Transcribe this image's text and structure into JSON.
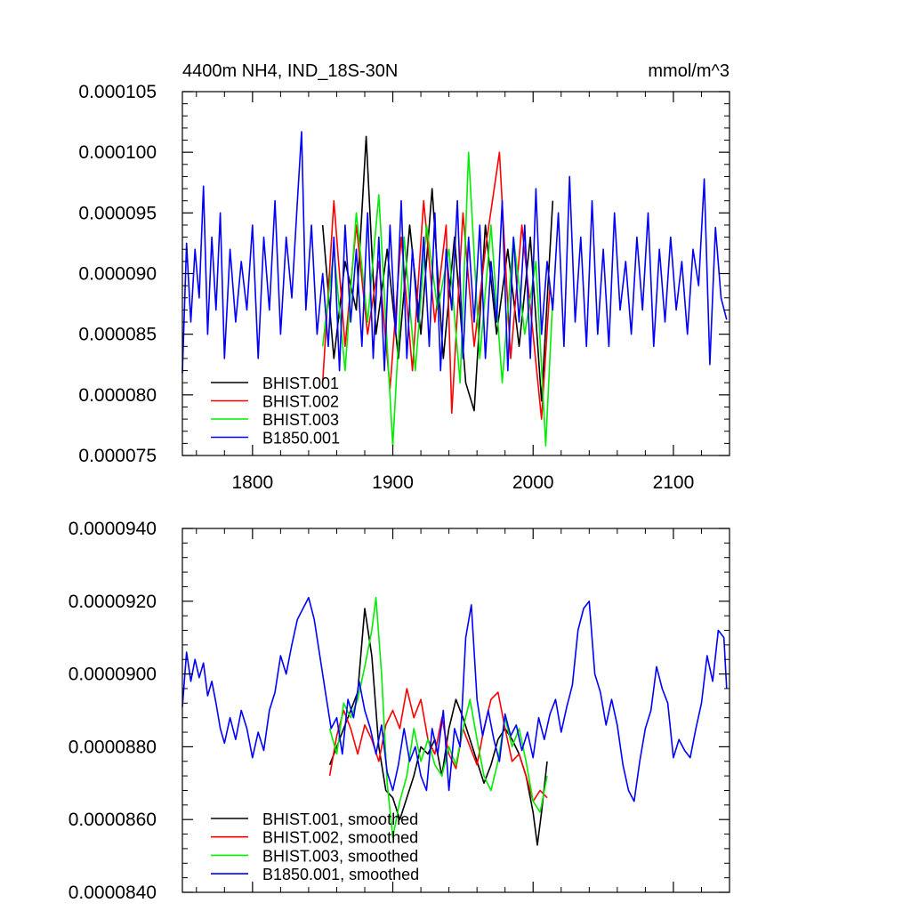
{
  "chart_data": [
    {
      "type": "line",
      "title": "4400m NH4, IND_18S-30N",
      "units": "mmol/m^3",
      "xlim": [
        1750,
        2140
      ],
      "ylim": [
        7.5e-05,
        0.000105
      ],
      "x_ticks": [
        1800,
        1900,
        2000,
        2100
      ],
      "x_tick_labels": [
        "1800",
        "1900",
        "2000",
        "2100"
      ],
      "y_ticks": [
        7.5e-05,
        8e-05,
        8.5e-05,
        9e-05,
        9.5e-05,
        0.0001,
        0.000105
      ],
      "y_tick_labels": [
        "0.000075",
        "0.000080",
        "0.000085",
        "0.000090",
        "0.000095",
        "0.000100",
        "0.000105"
      ],
      "grid": false,
      "legend_position": "bottom-left",
      "series": [
        {
          "name": "BHIST.001",
          "color": "#000000",
          "x": [
            1850,
            1858,
            1866,
            1874,
            1881,
            1888,
            1896,
            1904,
            1912,
            1920,
            1928,
            1936,
            1944,
            1952,
            1958,
            1966,
            1974,
            1982,
            1990,
            1998,
            2006,
            2014
          ],
          "y": [
            9.4e-05,
            8.3e-05,
            9.1e-05,
            8.7e-05,
            0.0001013,
            8.5e-05,
            9.2e-05,
            8.3e-05,
            9.4e-05,
            8.5e-05,
            9.7e-05,
            8.3e-05,
            9.3e-05,
            8.1e-05,
            7.87e-05,
            9.4e-05,
            8.5e-05,
            9.2e-05,
            8.4e-05,
            9.3e-05,
            7.95e-05,
            9.6e-05
          ]
        },
        {
          "name": "BHIST.002",
          "color": "#ff0000",
          "x": [
            1850,
            1858,
            1866,
            1874,
            1882,
            1890,
            1898,
            1906,
            1914,
            1922,
            1930,
            1938,
            1942,
            1950,
            1958,
            1966,
            1976,
            1984,
            1992,
            2000,
            2006,
            2012
          ],
          "y": [
            8.1e-05,
            9.6e-05,
            8.4e-05,
            9.4e-05,
            8.5e-05,
            9.1e-05,
            8.05e-05,
            9.3e-05,
            8.2e-05,
            9.6e-05,
            8.6e-05,
            9.4e-05,
            7.85e-05,
            9.5e-05,
            8.4e-05,
            9.2e-05,
            0.0001,
            8.3e-05,
            9.4e-05,
            8.5e-05,
            7.8e-05,
            8.9e-05
          ]
        },
        {
          "name": "BHIST.003",
          "color": "#00ee00",
          "x": [
            1850,
            1858,
            1866,
            1874,
            1882,
            1890,
            1900,
            1908,
            1916,
            1924,
            1932,
            1940,
            1948,
            1954,
            1962,
            1970,
            1978,
            1986,
            1994,
            2002,
            2009,
            2014
          ],
          "y": [
            8.4e-05,
            9.2e-05,
            8.2e-05,
            9.5e-05,
            8.6e-05,
            9.65e-05,
            7.58e-05,
            9.3e-05,
            8.2e-05,
            9.4e-05,
            8.7e-05,
            9.2e-05,
            8.1e-05,
            0.0001,
            8.3e-05,
            9.4e-05,
            8.1e-05,
            9.3e-05,
            8.5e-05,
            9.1e-05,
            7.58e-05,
            8.8e-05
          ]
        },
        {
          "name": "B1850.001",
          "color": "#0000ff",
          "x": [
            1750,
            1753,
            1756,
            1759,
            1762,
            1765,
            1768,
            1771,
            1774,
            1777,
            1780,
            1784,
            1788,
            1792,
            1796,
            1800,
            1804,
            1808,
            1812,
            1816,
            1820,
            1824,
            1828,
            1832,
            1835,
            1838,
            1842,
            1846,
            1850,
            1854,
            1858,
            1862,
            1866,
            1870,
            1874,
            1878,
            1882,
            1886,
            1890,
            1894,
            1898,
            1902,
            1906,
            1910,
            1914,
            1918,
            1922,
            1926,
            1930,
            1934,
            1938,
            1942,
            1946,
            1950,
            1954,
            1958,
            1962,
            1966,
            1970,
            1974,
            1978,
            1982,
            1986,
            1990,
            1994,
            1998,
            2002,
            2006,
            2010,
            2014,
            2018,
            2022,
            2026,
            2030,
            2034,
            2038,
            2042,
            2046,
            2050,
            2054,
            2058,
            2062,
            2066,
            2070,
            2074,
            2078,
            2082,
            2086,
            2090,
            2094,
            2098,
            2102,
            2106,
            2110,
            2114,
            2118,
            2122,
            2126,
            2130,
            2134,
            2138
          ],
          "y": [
            8.18e-05,
            9.25e-05,
            8.6e-05,
            9.2e-05,
            8.8e-05,
            9.72e-05,
            8.5e-05,
            9.3e-05,
            8.7e-05,
            9.5e-05,
            8.3e-05,
            9.2e-05,
            8.6e-05,
            9.1e-05,
            8.7e-05,
            9.4e-05,
            8.3e-05,
            9.3e-05,
            8.7e-05,
            9.6e-05,
            8.5e-05,
            9.3e-05,
            8.8e-05,
            9.6e-05,
            0.0001017,
            8.7e-05,
            9.4e-05,
            8.5e-05,
            9e-05,
            8.4e-05,
            9.3e-05,
            8.2e-05,
            9.4e-05,
            8.6e-05,
            9.2e-05,
            8.4e-05,
            9.5e-05,
            8.3e-05,
            9.3e-05,
            8.2e-05,
            9.4e-05,
            8.5e-05,
            9.6e-05,
            8.3e-05,
            9.2e-05,
            8.6e-05,
            9.3e-05,
            8.4e-05,
            9.5e-05,
            8.2e-05,
            9.2e-05,
            8.7e-05,
            9.6e-05,
            8.3e-05,
            9.3e-05,
            8.6e-05,
            9.4e-05,
            8.3e-05,
            9.1e-05,
            8.6e-05,
            9.6e-05,
            8.2e-05,
            9.3e-05,
            8.6e-05,
            9.4e-05,
            8.3e-05,
            9.7e-05,
            8.5e-05,
            9.1e-05,
            8.7e-05,
            9.5e-05,
            8.4e-05,
            9.8e-05,
            8.6e-05,
            9.3e-05,
            8.4e-05,
            9.6e-05,
            8.5e-05,
            9.2e-05,
            8.4e-05,
            9.5e-05,
            8.7e-05,
            9.1e-05,
            8.5e-05,
            9.3e-05,
            8.7e-05,
            9.5e-05,
            8.4e-05,
            9.2e-05,
            8.6e-05,
            9.3e-05,
            8.7e-05,
            9.1e-05,
            8.5e-05,
            9.2e-05,
            8.9e-05,
            9.78e-05,
            8.25e-05,
            9.38e-05,
            8.8e-05,
            8.62e-05
          ]
        }
      ]
    },
    {
      "type": "line",
      "xlim": [
        1750,
        2140
      ],
      "ylim": [
        8.4e-05,
        9.4e-05
      ],
      "x_ticks": [
        1800,
        1900,
        2000,
        2100
      ],
      "y_ticks": [
        8.4e-05,
        8.6e-05,
        8.8e-05,
        9e-05,
        9.2e-05,
        9.4e-05
      ],
      "y_tick_labels": [
        "0.0000840",
        "0.0000860",
        "0.0000880",
        "0.0000900",
        "0.0000920",
        "0.0000940"
      ],
      "grid": false,
      "legend_position": "bottom-left",
      "series": [
        {
          "name": "BHIST.001, smoothed",
          "color": "#000000",
          "x": [
            1855,
            1860,
            1865,
            1870,
            1875,
            1880,
            1885,
            1890,
            1895,
            1900,
            1905,
            1910,
            1915,
            1920,
            1925,
            1930,
            1935,
            1940,
            1945,
            1950,
            1955,
            1960,
            1965,
            1970,
            1975,
            1980,
            1985,
            1990,
            1995,
            2000,
            2003,
            2006,
            2010
          ],
          "y": [
            8.75e-05,
            8.8e-05,
            8.85e-05,
            8.9e-05,
            8.95e-05,
            9.18e-05,
            9.05e-05,
            8.8e-05,
            8.68e-05,
            8.66e-05,
            8.6e-05,
            8.66e-05,
            8.72e-05,
            8.8e-05,
            8.78e-05,
            8.82e-05,
            8.72e-05,
            8.85e-05,
            8.93e-05,
            8.88e-05,
            8.82e-05,
            8.76e-05,
            8.7e-05,
            8.75e-05,
            8.82e-05,
            8.85e-05,
            8.82e-05,
            8.78e-05,
            8.72e-05,
            8.62e-05,
            8.53e-05,
            8.62e-05,
            8.76e-05
          ]
        },
        {
          "name": "BHIST.002, smoothed",
          "color": "#ff0000",
          "x": [
            1855,
            1860,
            1865,
            1870,
            1875,
            1880,
            1885,
            1890,
            1895,
            1900,
            1905,
            1910,
            1915,
            1920,
            1925,
            1930,
            1935,
            1940,
            1945,
            1950,
            1955,
            1960,
            1965,
            1970,
            1975,
            1980,
            1985,
            1990,
            1995,
            2000,
            2005,
            2010
          ],
          "y": [
            8.72e-05,
            8.83e-05,
            8.9e-05,
            8.85e-05,
            8.78e-05,
            8.86e-05,
            8.82e-05,
            8.76e-05,
            8.86e-05,
            8.9e-05,
            8.85e-05,
            8.96e-05,
            8.88e-05,
            8.93e-05,
            8.82e-05,
            8.78e-05,
            8.88e-05,
            8.78e-05,
            8.74e-05,
            8.85e-05,
            8.8e-05,
            8.75e-05,
            8.85e-05,
            8.93e-05,
            8.95e-05,
            8.85e-05,
            8.76e-05,
            8.78e-05,
            8.72e-05,
            8.65e-05,
            8.68e-05,
            8.66e-05
          ]
        },
        {
          "name": "BHIST.003, smoothed",
          "color": "#00ee00",
          "x": [
            1855,
            1860,
            1865,
            1870,
            1875,
            1880,
            1885,
            1888,
            1892,
            1896,
            1900,
            1905,
            1910,
            1915,
            1920,
            1925,
            1930,
            1935,
            1940,
            1945,
            1950,
            1955,
            1960,
            1965,
            1970,
            1975,
            1980,
            1985,
            1990,
            1995,
            2000,
            2005,
            2010
          ],
          "y": [
            8.85e-05,
            8.78e-05,
            8.92e-05,
            8.88e-05,
            8.93e-05,
            9.02e-05,
            9.12e-05,
            9.21e-05,
            9e-05,
            8.7e-05,
            8.55e-05,
            8.65e-05,
            8.72e-05,
            8.85e-05,
            8.76e-05,
            8.82e-05,
            8.75e-05,
            8.72e-05,
            8.8e-05,
            8.75e-05,
            8.85e-05,
            8.93e-05,
            8.82e-05,
            8.72e-05,
            8.68e-05,
            8.76e-05,
            8.88e-05,
            8.8e-05,
            8.85e-05,
            8.76e-05,
            8.65e-05,
            8.62e-05,
            8.72e-05
          ]
        },
        {
          "name": "B1850.001, smoothed",
          "color": "#0000ff",
          "x": [
            1750,
            1753,
            1756,
            1759,
            1762,
            1765,
            1768,
            1771,
            1774,
            1777,
            1780,
            1784,
            1788,
            1792,
            1796,
            1800,
            1804,
            1808,
            1812,
            1816,
            1820,
            1824,
            1828,
            1832,
            1836,
            1840,
            1844,
            1848,
            1852,
            1856,
            1860,
            1864,
            1868,
            1872,
            1876,
            1880,
            1884,
            1888,
            1892,
            1896,
            1900,
            1904,
            1908,
            1912,
            1916,
            1920,
            1924,
            1928,
            1932,
            1936,
            1940,
            1944,
            1948,
            1952,
            1956,
            1960,
            1964,
            1968,
            1972,
            1976,
            1980,
            1984,
            1988,
            1992,
            1996,
            2000,
            2004,
            2008,
            2012,
            2016,
            2020,
            2024,
            2028,
            2032,
            2036,
            2040,
            2044,
            2048,
            2052,
            2056,
            2060,
            2064,
            2068,
            2072,
            2076,
            2080,
            2084,
            2088,
            2092,
            2096,
            2100,
            2104,
            2108,
            2112,
            2116,
            2120,
            2124,
            2128,
            2132,
            2136,
            2138
          ],
          "y": [
            8.91e-05,
            9.06e-05,
            8.98e-05,
            9.04e-05,
            8.99e-05,
            9.03e-05,
            8.94e-05,
            8.98e-05,
            8.92e-05,
            8.85e-05,
            8.81e-05,
            8.88e-05,
            8.82e-05,
            8.9e-05,
            8.85e-05,
            8.77e-05,
            8.84e-05,
            8.79e-05,
            8.9e-05,
            8.95e-05,
            9.05e-05,
            9e-05,
            9.08e-05,
            9.15e-05,
            9.18e-05,
            9.21e-05,
            9.15e-05,
            9.05e-05,
            8.95e-05,
            8.85e-05,
            8.88e-05,
            8.78e-05,
            8.93e-05,
            8.88e-05,
            8.98e-05,
            8.9e-05,
            8.85e-05,
            8.78e-05,
            8.86e-05,
            8.73e-05,
            8.68e-05,
            8.75e-05,
            8.85e-05,
            8.76e-05,
            8.8e-05,
            8.72e-05,
            8.68e-05,
            8.85e-05,
            8.78e-05,
            8.9e-05,
            8.68e-05,
            8.85e-05,
            8.8e-05,
            9.1e-05,
            9.19e-05,
            8.93e-05,
            8.83e-05,
            8.9e-05,
            8.82e-05,
            8.76e-05,
            8.89e-05,
            8.83e-05,
            8.86e-05,
            8.79e-05,
            8.84e-05,
            8.77e-05,
            8.88e-05,
            8.82e-05,
            8.89e-05,
            8.93e-05,
            8.84e-05,
            8.91e-05,
            8.97e-05,
            9.12e-05,
            9.18e-05,
            9.2e-05,
            9e-05,
            8.95e-05,
            8.86e-05,
            8.93e-05,
            8.86e-05,
            8.75e-05,
            8.68e-05,
            8.65e-05,
            8.76e-05,
            8.85e-05,
            8.9e-05,
            9.02e-05,
            8.96e-05,
            8.92e-05,
            8.77e-05,
            8.82e-05,
            8.79e-05,
            8.77e-05,
            8.85e-05,
            8.92e-05,
            9.05e-05,
            8.98e-05,
            9.12e-05,
            9.1e-05,
            8.96e-05
          ]
        }
      ]
    }
  ]
}
